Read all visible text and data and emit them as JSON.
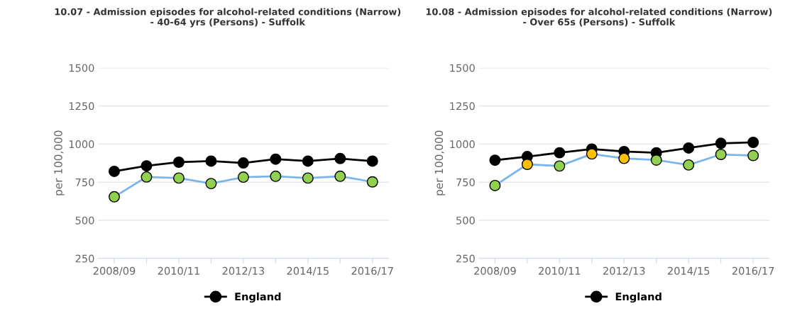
{
  "chart_data": [
    {
      "type": "line",
      "title": "10.07 - Admission episodes for alcohol-related conditions (Narrow)\n- 40-64 yrs (Persons) - Suffolk",
      "ylabel": "per 100,000",
      "categories": [
        "2008/09",
        null,
        "2010/11",
        null,
        "2012/13",
        null,
        "2014/15",
        null,
        "2016/17"
      ],
      "series": [
        {
          "name": "England",
          "color": "#000000",
          "values": [
            821,
            857,
            881,
            888,
            876,
            901,
            888,
            905,
            888
          ]
        },
        {
          "color": "#7cb5ec",
          "colors": [
            "#92d050",
            "#92d050",
            "#92d050",
            "#92d050",
            "#92d050",
            "#92d050",
            "#92d050",
            "#92d050",
            "#92d050"
          ],
          "values": [
            654,
            784,
            777,
            741,
            783,
            789,
            777,
            789,
            752
          ]
        }
      ],
      "ylim": [
        250,
        1500
      ],
      "yticks": [
        250,
        500,
        750,
        1000,
        1250,
        1500
      ],
      "grid": "y",
      "legend": "bottom",
      "marker": "circle",
      "line_style": "solid"
    },
    {
      "type": "line",
      "title": "10.08 - Admission episodes for alcohol-related conditions (Narrow)\n- Over 65s (Persons) - Suffolk",
      "ylabel": "per 100,000",
      "categories": [
        "2008/09",
        null,
        "2010/11",
        null,
        "2012/13",
        null,
        "2014/15",
        null,
        "2016/17"
      ],
      "series": [
        {
          "name": "England",
          "color": "#000000",
          "values": [
            894,
            918,
            943,
            967,
            951,
            943,
            974,
            1005,
            1011
          ]
        },
        {
          "color": "#7cb5ec",
          "colors": [
            "#92d050",
            "#ffc000",
            "#92d050",
            "#ffc000",
            "#ffc000",
            "#92d050",
            "#92d050",
            "#92d050",
            "#92d050"
          ],
          "values": [
            728,
            867,
            856,
            935,
            906,
            895,
            863,
            932,
            925
          ]
        }
      ],
      "ylim": [
        250,
        1500
      ],
      "yticks": [
        250,
        500,
        750,
        1000,
        1250,
        1500
      ],
      "grid": "y",
      "legend": "bottom",
      "marker": "circle",
      "line_style": "solid"
    }
  ]
}
